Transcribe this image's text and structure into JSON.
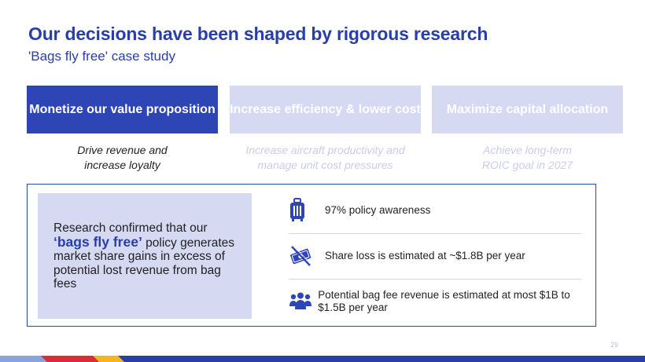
{
  "header": {
    "title": "Our decisions have been shaped by rigorous research",
    "subtitle": "'Bags fly free' case study"
  },
  "pillars": [
    {
      "title": "Monetize our value proposition",
      "description": "Drive revenue and increase loyalty",
      "state": "active"
    },
    {
      "title": "Increase efficiency & lower cost",
      "description": "Increase aircraft productivity and manage unit cost pressures",
      "state": "inactive"
    },
    {
      "title": "Maximize capital allocation",
      "description": "Achieve long-term ROIC goal in 2027",
      "state": "inactive"
    }
  ],
  "finding": {
    "text_before": "Research confirmed that our",
    "highlight": "‘bags fly free’",
    "text_after": "policy generates market share gains in excess of potential lost revenue from bag fees"
  },
  "points": [
    {
      "icon": "suitcase-icon",
      "text": "97% policy awareness"
    },
    {
      "icon": "money-crossed-icon",
      "text": "Share loss is estimated at ~$1.8B per year"
    },
    {
      "icon": "people-group-icon",
      "text": "Potential bag fee revenue is estimated at most $1B to $1.5B per year"
    }
  ],
  "page_number": "29",
  "colors": {
    "brand_blue": "#2e45b5",
    "light_blue": "#d5d9f2",
    "footer_red": "#d92e3a",
    "footer_yellow": "#f5b51c",
    "footer_navy": "#2a3ea8"
  }
}
